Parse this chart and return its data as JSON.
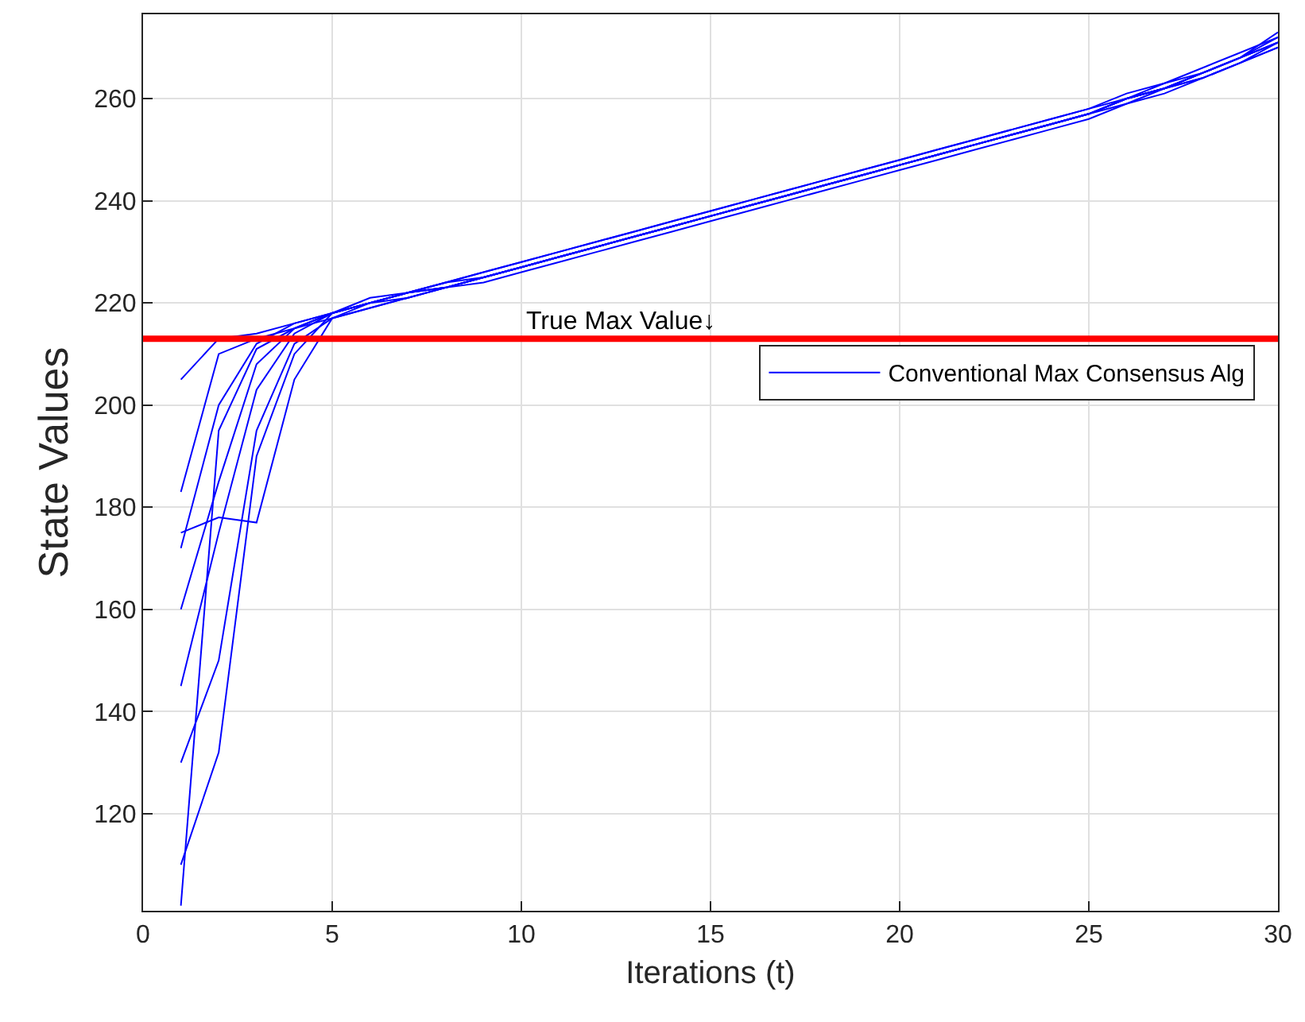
{
  "chart_data": {
    "type": "line",
    "xlabel": "Iterations (t)",
    "ylabel": "State Values",
    "x": [
      1,
      2,
      3,
      4,
      5,
      6,
      7,
      8,
      9,
      10,
      11,
      12,
      13,
      14,
      15,
      16,
      17,
      18,
      19,
      20,
      21,
      22,
      23,
      24,
      25,
      26,
      27,
      28,
      29,
      30
    ],
    "xlim": [
      0,
      30
    ],
    "xticks": [
      0,
      5,
      10,
      15,
      20,
      25,
      30
    ],
    "ylim": [
      101,
      276.5
    ],
    "yticks": [
      120,
      140,
      160,
      180,
      200,
      220,
      240,
      260
    ],
    "grid": true,
    "legend": "right",
    "marker": "none",
    "line_style": "solid",
    "series": [
      {
        "name": "Conventional Max Consensus Alg",
        "color": "#0000ff",
        "values": [
          205,
          213,
          214,
          216,
          218,
          220,
          222,
          223,
          225,
          227,
          229,
          231,
          233,
          235,
          237,
          239,
          241,
          243,
          245,
          247,
          249,
          251,
          253,
          255,
          257,
          260,
          262,
          265,
          268,
          271
        ]
      },
      {
        "color": "#0000ff",
        "values": [
          183,
          210,
          213,
          215,
          218,
          221,
          222,
          224,
          226,
          228,
          230,
          232,
          234,
          236,
          238,
          240,
          242,
          244,
          246,
          248,
          250,
          252,
          254,
          256,
          258,
          261,
          263,
          266,
          269,
          272
        ]
      },
      {
        "color": "#0000ff",
        "values": [
          175,
          178,
          177,
          205,
          217,
          219,
          221,
          223,
          224,
          226,
          228,
          230,
          232,
          234,
          236,
          238,
          240,
          242,
          244,
          246,
          248,
          250,
          252,
          254,
          256,
          259,
          261,
          264,
          267,
          270
        ]
      },
      {
        "color": "#0000ff",
        "values": [
          172,
          200,
          212,
          216,
          218,
          220,
          222,
          223,
          225,
          227,
          229,
          231,
          233,
          235,
          237,
          239,
          241,
          243,
          245,
          247,
          249,
          251,
          253,
          255,
          257,
          260,
          262,
          265,
          268,
          271
        ]
      },
      {
        "color": "#0000ff",
        "values": [
          160,
          185,
          208,
          215,
          217,
          220,
          221,
          223,
          225,
          227,
          229,
          231,
          233,
          235,
          237,
          239,
          241,
          243,
          245,
          247,
          249,
          251,
          253,
          255,
          257,
          260,
          262,
          264,
          267,
          270
        ]
      },
      {
        "color": "#0000ff",
        "values": [
          145,
          175,
          203,
          214,
          218,
          220,
          222,
          224,
          226,
          228,
          230,
          232,
          234,
          236,
          238,
          240,
          242,
          244,
          246,
          248,
          250,
          252,
          254,
          256,
          258,
          260,
          263,
          265,
          268,
          272
        ]
      },
      {
        "color": "#0000ff",
        "values": [
          130,
          150,
          195,
          212,
          217,
          219,
          221,
          223,
          225,
          227,
          229,
          231,
          233,
          235,
          237,
          239,
          241,
          243,
          245,
          247,
          249,
          251,
          253,
          255,
          257,
          259,
          262,
          264,
          267,
          271
        ]
      },
      {
        "color": "#0000ff",
        "values": [
          110,
          132,
          190,
          210,
          218,
          220,
          222,
          224,
          225,
          227,
          229,
          231,
          233,
          235,
          237,
          239,
          241,
          243,
          245,
          247,
          249,
          251,
          253,
          255,
          257,
          260,
          262,
          265,
          268,
          273
        ]
      },
      {
        "color": "#0000ff",
        "values": [
          102,
          195,
          211,
          215,
          218,
          220,
          222,
          223,
          225,
          227,
          229,
          231,
          233,
          235,
          237,
          239,
          241,
          243,
          245,
          247,
          249,
          251,
          253,
          255,
          257,
          260,
          262,
          265,
          268,
          271
        ]
      }
    ],
    "ref_lines": [
      {
        "axis": "y",
        "value": 213,
        "label": "True Max Value↓",
        "color": "#ff0000",
        "line_style": "solid"
      }
    ]
  }
}
